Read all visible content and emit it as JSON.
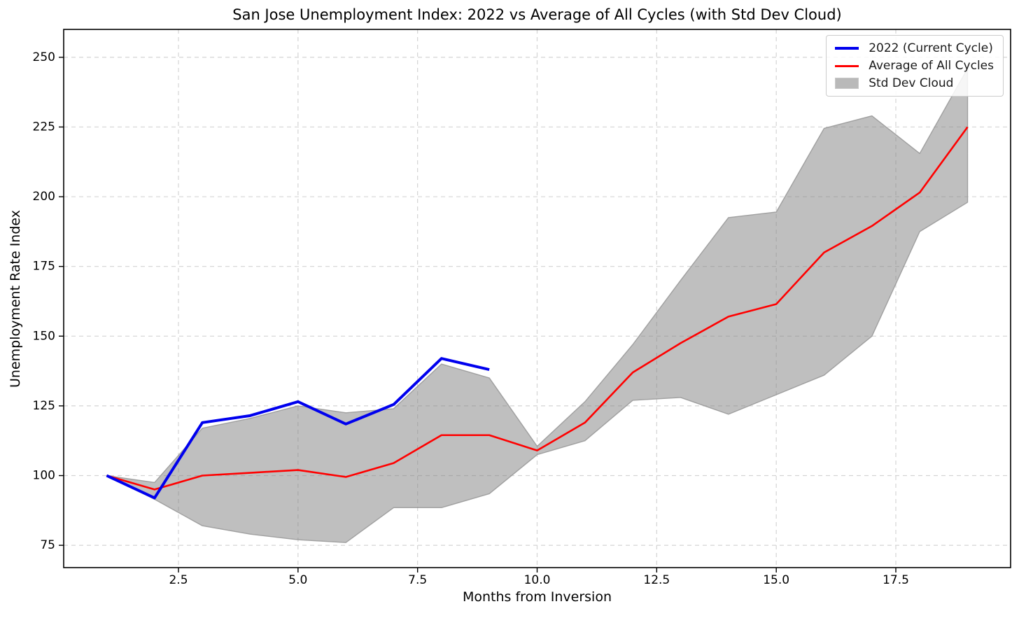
{
  "chart_data": {
    "type": "line",
    "title": "San Jose Unemployment Index: 2022 vs Average of All Cycles (with Std Dev Cloud)",
    "xlabel": "Months from Inversion",
    "ylabel": "Unemployment Rate Index",
    "x": [
      1,
      2,
      3,
      4,
      5,
      6,
      7,
      8,
      9,
      10,
      11,
      12,
      13,
      14,
      15,
      16,
      17,
      18,
      19
    ],
    "series": [
      {
        "name": "2022 (Current Cycle)",
        "color": "#0000ee",
        "line_width": 4,
        "values": [
          100,
          92,
          119,
          121.5,
          126.5,
          118.5,
          125.5,
          142,
          138
        ]
      },
      {
        "name": "Average of All Cycles",
        "color": "#ff0000",
        "line_width": 2.6,
        "values": [
          100,
          95,
          100,
          101,
          102,
          99.5,
          104.5,
          114.5,
          114.5,
          109,
          119,
          137,
          147.5,
          157,
          161.5,
          180,
          189.5,
          201.5,
          225
        ]
      }
    ],
    "band": {
      "name": "Std Dev Cloud",
      "fill_color": "#808080",
      "fill_opacity": 0.5,
      "edge_color": "#999999",
      "upper": [
        100,
        97.5,
        117,
        120.5,
        125,
        122.5,
        124,
        140,
        135,
        110.5,
        126.5,
        147,
        170,
        192.5,
        194.5,
        224.5,
        229,
        215.5,
        246
      ],
      "lower": [
        100,
        91.5,
        82,
        79,
        77,
        76,
        88.5,
        88.5,
        93.5,
        107.5,
        112.5,
        127,
        128,
        122,
        129,
        136,
        150,
        187.5,
        198
      ]
    },
    "legend": [
      {
        "label": "2022 (Current Cycle)",
        "swatch": "line",
        "color": "#0000ee",
        "thickness": 4
      },
      {
        "label": "Average of All Cycles",
        "swatch": "line",
        "color": "#ff0000",
        "thickness": 3
      },
      {
        "label": "Std Dev Cloud",
        "swatch": "patch",
        "color": "#808080",
        "edge_color": "#9c9c9c"
      }
    ],
    "legend_position": "upper right",
    "xtick_values": [
      2.5,
      5.0,
      7.5,
      10.0,
      12.5,
      15.0,
      17.5
    ],
    "xtick_labels": [
      "2.5",
      "5.0",
      "7.5",
      "10.0",
      "12.5",
      "15.0",
      "17.5"
    ],
    "ytick_values": [
      75,
      100,
      125,
      150,
      175,
      200,
      225,
      250
    ],
    "ytick_labels": [
      "75",
      "100",
      "125",
      "150",
      "175",
      "200",
      "225",
      "250"
    ],
    "xlim": [
      0.1,
      19.9
    ],
    "ylim": [
      67,
      260
    ],
    "grid": true,
    "grid_color": "#d4d4d4",
    "spine_color": "#000000",
    "background_color": "#ffffff"
  }
}
